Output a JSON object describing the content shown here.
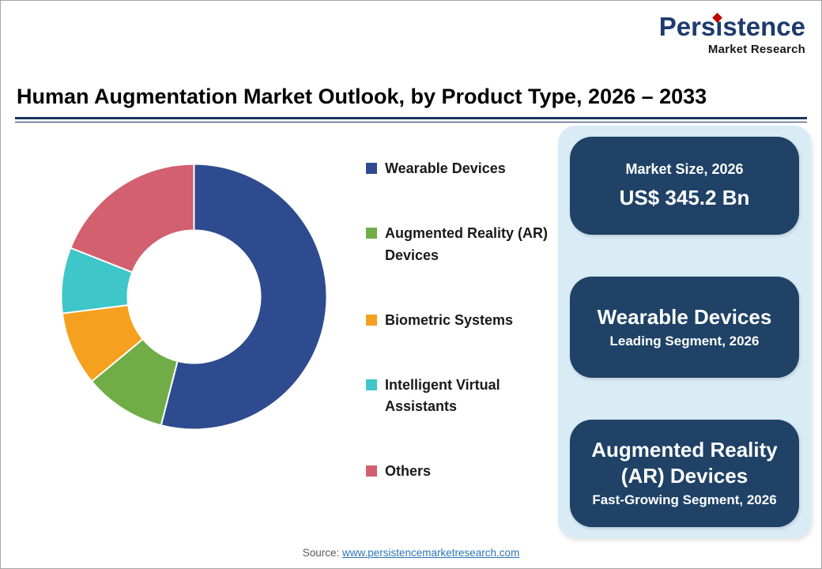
{
  "logo": {
    "name": "Persistence",
    "subtitle": "Market Research",
    "name_color": "#1e3a6e",
    "accent_color": "#c00000"
  },
  "header": {
    "title": "Human Augmentation Market Outlook, by Product Type, 2026 – 2033",
    "underline_color": "#17375e"
  },
  "chart_data": {
    "type": "pie",
    "donut": true,
    "title": "Human Augmentation Market Outlook, by Product Type, 2026 – 2033",
    "categories": [
      "Wearable Devices",
      "Augmented Reality (AR) Devices",
      "Biometric Systems",
      "Intelligent Virtual Assistants",
      "Others"
    ],
    "values": [
      54,
      10,
      9,
      8,
      19
    ],
    "unit": "%",
    "colors": [
      "#2e4b8f",
      "#70ad47",
      "#f5a01e",
      "#3ec6c9",
      "#d2606e"
    ],
    "start_angle_deg": 0,
    "direction": "clockwise",
    "inner_radius_ratio": 0.5,
    "legend_position": "right"
  },
  "info_panel": {
    "background": "#d9ecf6",
    "card_color": "#1f4266",
    "cards": [
      {
        "line1": "Market Size, 2026",
        "line2": "US$ 345.2 Bn"
      },
      {
        "line1": "Wearable Devices",
        "line2": "Leading Segment, 2026"
      },
      {
        "line1": "Augmented Reality (AR) Devices",
        "line2": "Fast-Growing Segment, 2026"
      }
    ]
  },
  "footer": {
    "source_label": "Source:",
    "source_link": "www.persistencemarketresearch.com"
  }
}
